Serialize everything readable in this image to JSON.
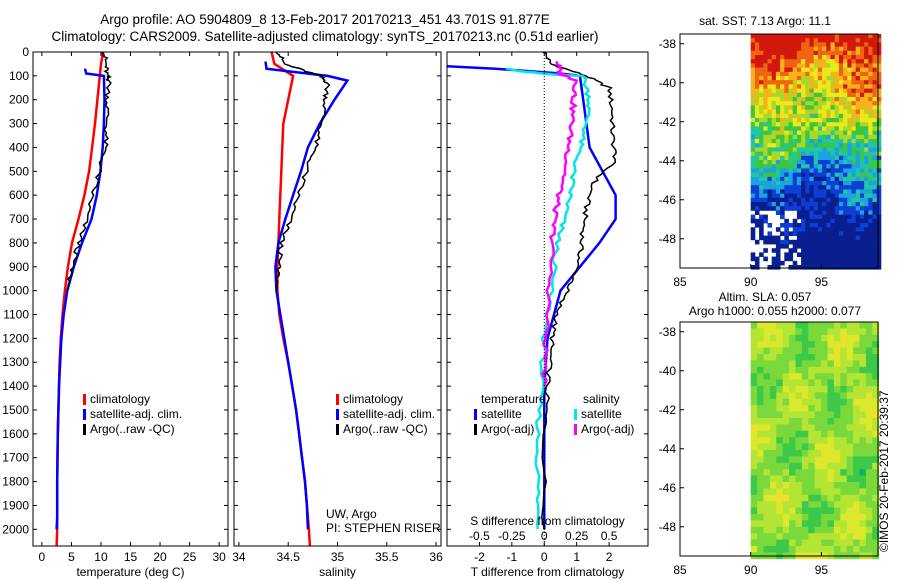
{
  "header": {
    "line1": "Argo profile: AO 5904809_8 13-Feb-2017 20170213_451 43.701S 91.877E",
    "line2": "Climatology: CARS2009. Satellite-adjusted climatology: synTS_20170213.nc (0.51d earlier)"
  },
  "stamp": "©IMOS 20-Feb-2017 20:39:37",
  "colors": {
    "climatology": "#ff0000",
    "satellite": "#0000ff",
    "argo": "#000000",
    "sat_diff": "#00e5e5",
    "argo_sdiff": "#ff00ff"
  },
  "depth_ticks": [
    0,
    100,
    200,
    300,
    400,
    500,
    600,
    700,
    800,
    900,
    1000,
    1100,
    1200,
    1300,
    1400,
    1500,
    1600,
    1700,
    1800,
    1900,
    2000
  ],
  "chart_data": [
    {
      "type": "line",
      "id": "temperature",
      "xlabel": "temperature (deg C)",
      "xticks": [
        0,
        5,
        10,
        15,
        20,
        25,
        30
      ],
      "xlim": [
        -1.5,
        31.5
      ],
      "ylim": [
        2070,
        0
      ],
      "legend": [
        "climatology",
        "satellite-adj. clim.",
        "Argo(..raw -QC)"
      ],
      "series": [
        {
          "name": "climatology",
          "color": "#ff0000",
          "points": [
            [
              10.4,
              0
            ],
            [
              10,
              50
            ],
            [
              9.8,
              100
            ],
            [
              9.4,
              200
            ],
            [
              9,
              300
            ],
            [
              8.5,
              400
            ],
            [
              8,
              500
            ],
            [
              7.2,
              600
            ],
            [
              6.2,
              700
            ],
            [
              5.1,
              800
            ],
            [
              4.4,
              900
            ],
            [
              3.9,
              1000
            ],
            [
              3.5,
              1100
            ],
            [
              3.2,
              1200
            ],
            [
              3,
              1300
            ],
            [
              2.9,
              1400
            ],
            [
              2.8,
              1500
            ],
            [
              2.7,
              1600
            ],
            [
              2.6,
              1800
            ],
            [
              2.6,
              2000
            ],
            [
              2.5,
              2070
            ]
          ]
        },
        {
          "name": "satellite-adj. clim.",
          "color": "#0000ff",
          "points": [
            [
              7.3,
              70
            ],
            [
              7.5,
              90
            ],
            [
              10.5,
              100
            ],
            [
              10.6,
              200
            ],
            [
              10.5,
              300
            ],
            [
              10.3,
              400
            ],
            [
              9.9,
              500
            ],
            [
              9.3,
              600
            ],
            [
              8.4,
              700
            ],
            [
              6.8,
              800
            ],
            [
              5.4,
              900
            ],
            [
              4.3,
              1000
            ],
            [
              3.7,
              1100
            ],
            [
              3.3,
              1200
            ],
            [
              3.1,
              1300
            ],
            [
              2.9,
              1400
            ],
            [
              2.8,
              1500
            ],
            [
              2.7,
              1600
            ],
            [
              2.6,
              1800
            ],
            [
              2.6,
              1950
            ],
            [
              2.5,
              2000
            ]
          ]
        },
        {
          "name": "Argo(..raw -QC)",
          "color": "#000000",
          "points": [
            [
              10.6,
              0
            ],
            [
              10.8,
              50
            ],
            [
              11,
              100
            ],
            [
              11.4,
              120
            ],
            [
              11.1,
              200
            ],
            [
              11,
              300
            ],
            [
              10.7,
              400
            ],
            [
              9.7,
              500
            ],
            [
              8.5,
              600
            ],
            [
              7.5,
              700
            ],
            [
              6.3,
              800
            ],
            [
              5.1,
              900
            ],
            [
              4.3,
              1000
            ]
          ]
        }
      ]
    },
    {
      "type": "line",
      "id": "salinity",
      "xlabel": "salinity",
      "xticks": [
        34,
        34.5,
        35,
        35.5,
        36
      ],
      "xlim": [
        33.95,
        36.05
      ],
      "ylim": [
        2070,
        0
      ],
      "legend": [
        "climatology",
        "satellite-adj. clim.",
        "Argo(..raw -QC)"
      ],
      "annotations": [
        "UW, Argo",
        "PI: STEPHEN RISER"
      ],
      "series": [
        {
          "name": "climatology",
          "color": "#ff0000",
          "points": [
            [
              34.33,
              0
            ],
            [
              34.36,
              50
            ],
            [
              34.55,
              100
            ],
            [
              34.5,
              200
            ],
            [
              34.45,
              300
            ],
            [
              34.44,
              400
            ],
            [
              34.43,
              500
            ],
            [
              34.42,
              600
            ],
            [
              34.41,
              700
            ],
            [
              34.4,
              800
            ],
            [
              34.39,
              900
            ],
            [
              34.39,
              1000
            ],
            [
              34.41,
              1100
            ],
            [
              34.45,
              1200
            ],
            [
              34.5,
              1300
            ],
            [
              34.54,
              1400
            ],
            [
              34.58,
              1500
            ],
            [
              34.61,
              1600
            ],
            [
              34.64,
              1700
            ],
            [
              34.67,
              1800
            ],
            [
              34.69,
              1900
            ],
            [
              34.71,
              2000
            ],
            [
              34.72,
              2070
            ]
          ]
        },
        {
          "name": "satellite-adj. clim.",
          "color": "#0000ff",
          "points": [
            [
              34.27,
              40
            ],
            [
              34.28,
              70
            ],
            [
              34.9,
              100
            ],
            [
              35.1,
              120
            ],
            [
              34.97,
              200
            ],
            [
              34.82,
              300
            ],
            [
              34.7,
              400
            ],
            [
              34.63,
              500
            ],
            [
              34.55,
              600
            ],
            [
              34.47,
              700
            ],
            [
              34.4,
              800
            ],
            [
              34.37,
              900
            ],
            [
              34.38,
              1000
            ],
            [
              34.42,
              1100
            ],
            [
              34.46,
              1200
            ],
            [
              34.5,
              1300
            ],
            [
              34.54,
              1400
            ],
            [
              34.58,
              1500
            ],
            [
              34.61,
              1600
            ],
            [
              34.64,
              1700
            ],
            [
              34.67,
              1800
            ],
            [
              34.69,
              1900
            ],
            [
              34.7,
              2000
            ]
          ]
        },
        {
          "name": "Argo(..raw -QC)",
          "color": "#000000",
          "points": [
            [
              34.4,
              0
            ],
            [
              34.46,
              50
            ],
            [
              34.82,
              100
            ],
            [
              34.9,
              130
            ],
            [
              34.88,
              200
            ],
            [
              34.84,
              300
            ],
            [
              34.77,
              400
            ],
            [
              34.68,
              500
            ],
            [
              34.6,
              600
            ],
            [
              34.52,
              700
            ],
            [
              34.43,
              800
            ],
            [
              34.4,
              900
            ],
            [
              34.38,
              1000
            ]
          ]
        }
      ]
    },
    {
      "type": "line",
      "id": "differences",
      "xlabel": "T difference from climatology",
      "xticks": [
        -2,
        -1,
        0,
        1,
        2
      ],
      "top_axis_label": "S difference from climatology",
      "top_ticks": [
        -0.5,
        -0.25,
        0,
        0.25,
        0.5
      ],
      "xlim": [
        -3,
        3.2
      ],
      "ylim": [
        2070,
        0
      ],
      "legend": {
        "temperature_header": "temperature",
        "salinity_header": "salinity",
        "temperature": [
          "satellite",
          "Argo(-adj)"
        ],
        "salinity": [
          "satellite",
          "Argo(-adj)"
        ]
      },
      "series": [
        {
          "name": "temperature satellite",
          "color": "#0000ff",
          "points": [
            [
              -3,
              60
            ],
            [
              -1.5,
              70
            ],
            [
              0.5,
              90
            ],
            [
              1.1,
              100
            ],
            [
              1.2,
              200
            ],
            [
              1.3,
              300
            ],
            [
              1.4,
              400
            ],
            [
              1.8,
              500
            ],
            [
              2.2,
              600
            ],
            [
              2.2,
              700
            ],
            [
              1.7,
              800
            ],
            [
              1.1,
              900
            ],
            [
              0.5,
              1000
            ],
            [
              0.3,
              1100
            ],
            [
              0.1,
              1200
            ],
            [
              0.05,
              1300
            ],
            [
              0,
              1400
            ],
            [
              0,
              1600
            ],
            [
              0,
              2000
            ]
          ]
        },
        {
          "name": "temperature Argo(-adj)",
          "color": "#000000",
          "points": [
            [
              0,
              0
            ],
            [
              0.2,
              50
            ],
            [
              1.3,
              100
            ],
            [
              2,
              150
            ],
            [
              2.1,
              250
            ],
            [
              2.1,
              350
            ],
            [
              2.2,
              450
            ],
            [
              1.5,
              550
            ],
            [
              1.3,
              650
            ],
            [
              1.2,
              750
            ],
            [
              1.1,
              850
            ],
            [
              0.9,
              950
            ],
            [
              0.5,
              1050
            ],
            [
              0.3,
              1150
            ],
            [
              0.2,
              1250
            ],
            [
              0.1,
              1400
            ],
            [
              0,
              1600
            ],
            [
              0,
              2000
            ]
          ]
        },
        {
          "name": "salinity satellite",
          "color": "#00e5e5",
          "points": [
            [
              -1.1,
              70
            ],
            [
              -0.8,
              80
            ],
            [
              0.3,
              95
            ],
            [
              1.2,
              100
            ],
            [
              1.4,
              200
            ],
            [
              1.3,
              300
            ],
            [
              1.1,
              400
            ],
            [
              0.9,
              500
            ],
            [
              0.8,
              600
            ],
            [
              0.6,
              700
            ],
            [
              0.4,
              800
            ],
            [
              0.2,
              1000
            ],
            [
              0,
              1200
            ],
            [
              -0.1,
              1400
            ],
            [
              -0.2,
              1600
            ],
            [
              -0.2,
              1800
            ],
            [
              -0.2,
              2000
            ]
          ]
        },
        {
          "name": "salinity Argo(-adj)",
          "color": "#ff00ff",
          "points": [
            [
              0.4,
              40
            ],
            [
              0.5,
              90
            ],
            [
              1,
              120
            ],
            [
              0.9,
              200
            ],
            [
              0.85,
              300
            ],
            [
              0.75,
              400
            ],
            [
              0.65,
              500
            ],
            [
              0.45,
              600
            ],
            [
              0.3,
              700
            ],
            [
              0.25,
              800
            ],
            [
              0.15,
              1000
            ],
            [
              0.05,
              1200
            ],
            [
              0,
              1400
            ]
          ]
        }
      ]
    },
    {
      "type": "heatmap",
      "id": "sat-sst",
      "title": "sat. SST: 7.13 Argo: 11.1",
      "xticks": [
        85,
        90,
        95
      ],
      "yticks": [
        -38,
        -40,
        -42,
        -44,
        -46,
        -48
      ],
      "xlim": [
        85,
        99
      ],
      "ylim": [
        -49.5,
        -37.5
      ]
    },
    {
      "type": "heatmap",
      "id": "altim-sla",
      "title": "Altim. SLA: 0.057",
      "subtitle": "Argo h1000: 0.055 h2000: 0.077",
      "xticks": [
        85,
        90,
        95
      ],
      "yticks": [
        -38,
        -40,
        -42,
        -44,
        -46,
        -48
      ],
      "xlim": [
        85,
        99
      ],
      "ylim": [
        -49.5,
        -37.5
      ]
    }
  ]
}
